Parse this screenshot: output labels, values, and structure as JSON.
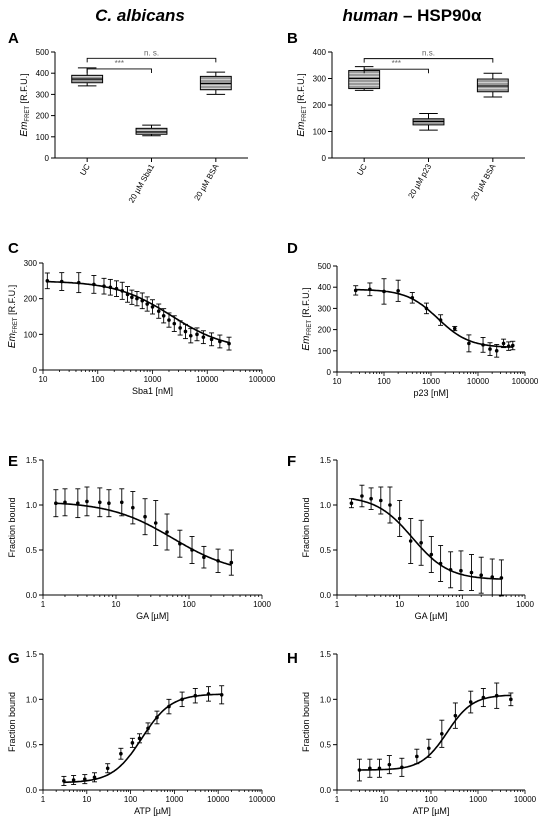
{
  "header": {
    "left_italic": "C. albicans",
    "right_italic": "human",
    "right_rest": " – HSP90α"
  },
  "chart_data": [
    {
      "panel": "A",
      "type": "box",
      "ylabel_main": "Em",
      "ylabel_sub": "FRET",
      "ylabel_unit": " [R.F.U.]",
      "ylim": [
        0,
        500
      ],
      "yticks": [
        0,
        100,
        200,
        300,
        400,
        500
      ],
      "categories": [
        "UC",
        "20 µM Sba1",
        "20 µM BSA"
      ],
      "boxes": [
        {
          "min": 340,
          "q1": 355,
          "median": 372,
          "q3": 390,
          "max": 425
        },
        {
          "min": 105,
          "q1": 112,
          "median": 123,
          "q3": 140,
          "max": 155
        },
        {
          "min": 300,
          "q1": 322,
          "median": 352,
          "q3": 385,
          "max": 405
        }
      ],
      "brackets": [
        {
          "from": 0,
          "to": 2,
          "level": 470,
          "label": "n. s."
        },
        {
          "from": 0,
          "to": 1,
          "level": 420,
          "label": "***"
        }
      ]
    },
    {
      "panel": "B",
      "type": "box",
      "ylabel_main": "Em",
      "ylabel_sub": "FRET",
      "ylabel_unit": " [R.F.U.]",
      "ylim": [
        0,
        400
      ],
      "yticks": [
        0,
        100,
        200,
        300,
        400
      ],
      "categories": [
        "UC",
        "20 µM p23",
        "20 µM BSA"
      ],
      "boxes": [
        {
          "min": 255,
          "q1": 262,
          "median": 300,
          "q3": 330,
          "max": 345
        },
        {
          "min": 105,
          "q1": 125,
          "median": 138,
          "q3": 148,
          "max": 168
        },
        {
          "min": 230,
          "q1": 250,
          "median": 272,
          "q3": 298,
          "max": 320
        }
      ],
      "brackets": [
        {
          "from": 0,
          "to": 2,
          "level": 375,
          "label": "n.s."
        },
        {
          "from": 0,
          "to": 1,
          "level": 335,
          "label": "***"
        }
      ]
    },
    {
      "panel": "C",
      "type": "scatter",
      "xscale": "log",
      "xlim": [
        10,
        100000
      ],
      "xticks": [
        10,
        100,
        1000,
        10000,
        100000
      ],
      "xlabel": "Sba1 [nM]",
      "ylabel_main": "Em",
      "ylabel_sub": "FRET",
      "ylabel_unit": " [R.F.U.]",
      "ylim": [
        0,
        300
      ],
      "yticks": [
        0,
        100,
        200,
        300
      ],
      "curve": {
        "bottom": 55,
        "top": 250,
        "ec50": 2200,
        "hill": 0.85
      },
      "points": [
        {
          "x": 12,
          "y": 250,
          "err": 22
        },
        {
          "x": 22,
          "y": 248,
          "err": 25
        },
        {
          "x": 45,
          "y": 245,
          "err": 28
        },
        {
          "x": 85,
          "y": 240,
          "err": 25
        },
        {
          "x": 130,
          "y": 235,
          "err": 22
        },
        {
          "x": 170,
          "y": 232,
          "err": 22
        },
        {
          "x": 220,
          "y": 228,
          "err": 22
        },
        {
          "x": 280,
          "y": 222,
          "err": 24
        },
        {
          "x": 350,
          "y": 212,
          "err": 22
        },
        {
          "x": 420,
          "y": 204,
          "err": 20
        },
        {
          "x": 520,
          "y": 200,
          "err": 20
        },
        {
          "x": 650,
          "y": 194,
          "err": 22
        },
        {
          "x": 800,
          "y": 185,
          "err": 20
        },
        {
          "x": 1000,
          "y": 177,
          "err": 20
        },
        {
          "x": 1300,
          "y": 165,
          "err": 20
        },
        {
          "x": 1600,
          "y": 152,
          "err": 20
        },
        {
          "x": 2000,
          "y": 140,
          "err": 20
        },
        {
          "x": 2500,
          "y": 130,
          "err": 22
        },
        {
          "x": 3200,
          "y": 118,
          "err": 20
        },
        {
          "x": 4000,
          "y": 108,
          "err": 20
        },
        {
          "x": 5000,
          "y": 96,
          "err": 20
        },
        {
          "x": 6500,
          "y": 100,
          "err": 18
        },
        {
          "x": 8500,
          "y": 92,
          "err": 18
        },
        {
          "x": 12000,
          "y": 86,
          "err": 18
        },
        {
          "x": 17000,
          "y": 80,
          "err": 18
        },
        {
          "x": 25000,
          "y": 74,
          "err": 18
        }
      ]
    },
    {
      "panel": "D",
      "type": "scatter",
      "xscale": "log",
      "xlim": [
        10,
        100000
      ],
      "xticks": [
        10,
        100,
        1000,
        10000,
        100000
      ],
      "xlabel": "p23 [nM]",
      "ylabel_main": "Em",
      "ylabel_sub": "FRET",
      "ylabel_unit": " [R.F.U.]",
      "ylim": [
        0,
        500
      ],
      "yticks": [
        0,
        100,
        200,
        300,
        400,
        500
      ],
      "curve": {
        "bottom": 115,
        "top": 390,
        "ec50": 1400,
        "hill": 1.3
      },
      "points": [
        {
          "x": 25,
          "y": 385,
          "err": 22
        },
        {
          "x": 50,
          "y": 390,
          "err": 30
        },
        {
          "x": 100,
          "y": 380,
          "err": 60
        },
        {
          "x": 200,
          "y": 383,
          "err": 50
        },
        {
          "x": 400,
          "y": 350,
          "err": 25
        },
        {
          "x": 800,
          "y": 300,
          "err": 25
        },
        {
          "x": 1600,
          "y": 245,
          "err": 25
        },
        {
          "x": 3200,
          "y": 205,
          "err": 10
        },
        {
          "x": 6400,
          "y": 135,
          "err": 40
        },
        {
          "x": 12800,
          "y": 128,
          "err": 35
        },
        {
          "x": 18000,
          "y": 108,
          "err": 30
        },
        {
          "x": 25000,
          "y": 100,
          "err": 30
        },
        {
          "x": 35000,
          "y": 135,
          "err": 20
        },
        {
          "x": 45000,
          "y": 122,
          "err": 20
        },
        {
          "x": 55000,
          "y": 125,
          "err": 20
        }
      ]
    },
    {
      "panel": "E",
      "type": "scatter",
      "xscale": "log",
      "xlim": [
        1,
        1000
      ],
      "xticks": [
        1,
        10,
        100,
        1000
      ],
      "xlabel": "GA [µM]",
      "ylabel": "Fraction bound",
      "ylim": [
        0,
        1.5
      ],
      "yticks": [
        0,
        0.5,
        1.0,
        1.5
      ],
      "curve": {
        "bottom": 0.22,
        "top": 1.04,
        "ec50": 60,
        "hill": 1.0
      },
      "points": [
        {
          "x": 1.5,
          "y": 1.02,
          "err": 0.15
        },
        {
          "x": 2,
          "y": 1.03,
          "err": 0.15
        },
        {
          "x": 3,
          "y": 1.02,
          "err": 0.16
        },
        {
          "x": 4,
          "y": 1.04,
          "err": 0.16
        },
        {
          "x": 6,
          "y": 1.03,
          "err": 0.16
        },
        {
          "x": 8,
          "y": 1.02,
          "err": 0.15
        },
        {
          "x": 12,
          "y": 1.03,
          "err": 0.15
        },
        {
          "x": 17,
          "y": 0.97,
          "err": 0.18
        },
        {
          "x": 25,
          "y": 0.87,
          "err": 0.2
        },
        {
          "x": 35,
          "y": 0.8,
          "err": 0.25
        },
        {
          "x": 50,
          "y": 0.7,
          "err": 0.2
        },
        {
          "x": 75,
          "y": 0.57,
          "err": 0.15
        },
        {
          "x": 110,
          "y": 0.5,
          "err": 0.15
        },
        {
          "x": 160,
          "y": 0.42,
          "err": 0.12
        },
        {
          "x": 250,
          "y": 0.38,
          "err": 0.13
        },
        {
          "x": 380,
          "y": 0.36,
          "err": 0.14
        }
      ]
    },
    {
      "panel": "F",
      "type": "scatter",
      "xscale": "log",
      "xlim": [
        1,
        1000
      ],
      "xticks": [
        1,
        10,
        100,
        1000
      ],
      "xlabel": "GA [µM]",
      "ylabel": "Fraction bound",
      "ylim": [
        0,
        1.5
      ],
      "yticks": [
        0,
        0.5,
        1.0,
        1.5
      ],
      "curve": {
        "bottom": 0.17,
        "top": 1.1,
        "ec50": 16,
        "hill": 1.5
      },
      "points": [
        {
          "x": 1.7,
          "y": 1.02,
          "err": 0.05
        },
        {
          "x": 2.5,
          "y": 1.1,
          "err": 0.12
        },
        {
          "x": 3.5,
          "y": 1.07,
          "err": 0.12
        },
        {
          "x": 5,
          "y": 1.05,
          "err": 0.15
        },
        {
          "x": 7,
          "y": 1.0,
          "err": 0.2
        },
        {
          "x": 10,
          "y": 0.85,
          "err": 0.2
        },
        {
          "x": 15,
          "y": 0.6,
          "err": 0.25
        },
        {
          "x": 22,
          "y": 0.58,
          "err": 0.25
        },
        {
          "x": 32,
          "y": 0.45,
          "err": 0.2
        },
        {
          "x": 45,
          "y": 0.35,
          "err": 0.2
        },
        {
          "x": 65,
          "y": 0.28,
          "err": 0.2
        },
        {
          "x": 95,
          "y": 0.27,
          "err": 0.22
        },
        {
          "x": 140,
          "y": 0.25,
          "err": 0.2
        },
        {
          "x": 200,
          "y": 0.22,
          "err": 0.2
        },
        {
          "x": 300,
          "y": 0.2,
          "err": 0.2
        },
        {
          "x": 420,
          "y": 0.19,
          "err": 0.2
        }
      ]
    },
    {
      "panel": "G",
      "type": "scatter",
      "xscale": "log",
      "xlim": [
        1,
        100000
      ],
      "xticks": [
        1,
        10,
        100,
        1000,
        10000,
        100000
      ],
      "xlabel": "ATP [µM]",
      "ylabel": "Fraction bound",
      "ylim": [
        0,
        1.5
      ],
      "yticks": [
        0,
        0.5,
        1.0,
        1.5
      ],
      "curve": {
        "bottom": 0.08,
        "top": 1.06,
        "ec50": 180,
        "hill": 1.3
      },
      "points": [
        {
          "x": 3,
          "y": 0.1,
          "err": 0.05
        },
        {
          "x": 5,
          "y": 0.11,
          "err": 0.05
        },
        {
          "x": 9,
          "y": 0.12,
          "err": 0.05
        },
        {
          "x": 15,
          "y": 0.14,
          "err": 0.05
        },
        {
          "x": 30,
          "y": 0.24,
          "err": 0.05
        },
        {
          "x": 60,
          "y": 0.4,
          "err": 0.06
        },
        {
          "x": 110,
          "y": 0.52,
          "err": 0.05
        },
        {
          "x": 160,
          "y": 0.57,
          "err": 0.05
        },
        {
          "x": 250,
          "y": 0.68,
          "err": 0.06
        },
        {
          "x": 400,
          "y": 0.8,
          "err": 0.07
        },
        {
          "x": 750,
          "y": 0.92,
          "err": 0.08
        },
        {
          "x": 1500,
          "y": 1.0,
          "err": 0.08
        },
        {
          "x": 3000,
          "y": 1.04,
          "err": 0.08
        },
        {
          "x": 6000,
          "y": 1.06,
          "err": 0.08
        },
        {
          "x": 12000,
          "y": 1.05,
          "err": 0.1
        }
      ]
    },
    {
      "panel": "H",
      "type": "scatter",
      "xscale": "log",
      "xlim": [
        1,
        10000
      ],
      "xticks": [
        1,
        10,
        100,
        1000,
        10000
      ],
      "xlabel": "ATP [µM]",
      "ylabel": "Fraction bound",
      "ylim": [
        0,
        1.5
      ],
      "yticks": [
        0,
        0.5,
        1.0,
        1.5
      ],
      "curve": {
        "bottom": 0.22,
        "top": 1.05,
        "ec50": 220,
        "hill": 1.6
      },
      "points": [
        {
          "x": 3,
          "y": 0.22,
          "err": 0.12
        },
        {
          "x": 5,
          "y": 0.24,
          "err": 0.1
        },
        {
          "x": 8,
          "y": 0.24,
          "err": 0.1
        },
        {
          "x": 13,
          "y": 0.28,
          "err": 0.1
        },
        {
          "x": 24,
          "y": 0.25,
          "err": 0.1
        },
        {
          "x": 50,
          "y": 0.37,
          "err": 0.08
        },
        {
          "x": 90,
          "y": 0.46,
          "err": 0.1
        },
        {
          "x": 170,
          "y": 0.62,
          "err": 0.15
        },
        {
          "x": 330,
          "y": 0.82,
          "err": 0.14
        },
        {
          "x": 700,
          "y": 0.97,
          "err": 0.12
        },
        {
          "x": 1300,
          "y": 1.02,
          "err": 0.1
        },
        {
          "x": 2500,
          "y": 1.04,
          "err": 0.14
        },
        {
          "x": 5000,
          "y": 1.0,
          "err": 0.07
        }
      ]
    }
  ]
}
